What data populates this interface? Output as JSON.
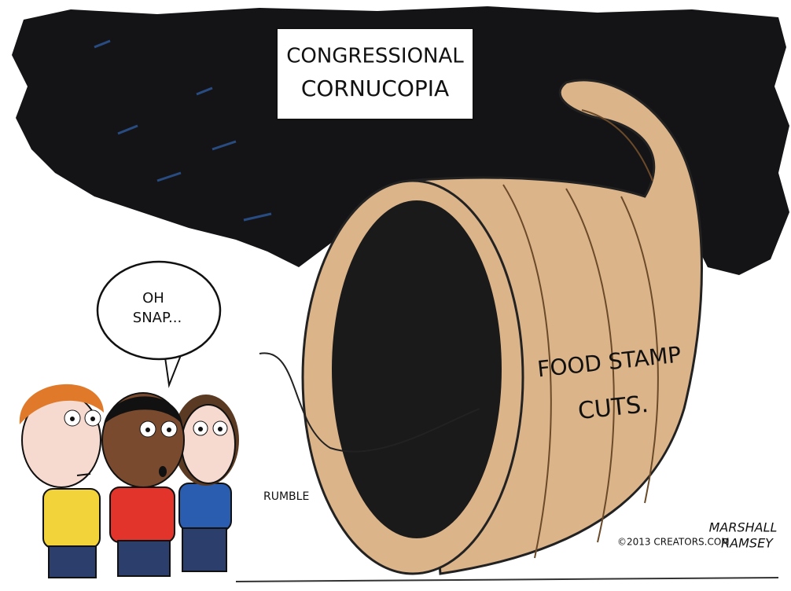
{
  "sign": {
    "lines": [
      "CONGRESSIONAL",
      "CORNUCOPIA"
    ]
  },
  "speech_bubble": {
    "lines": [
      "OH",
      "SNAP..."
    ]
  },
  "cornucopia_label": {
    "lines": [
      "FOOD STAMP",
      "CUTS."
    ]
  },
  "sound_effect": "RUMBLE",
  "copyright": "©2013 CREATORS.COM",
  "signature": {
    "lines": [
      "MARSHALL",
      "RAMSEY"
    ]
  }
}
